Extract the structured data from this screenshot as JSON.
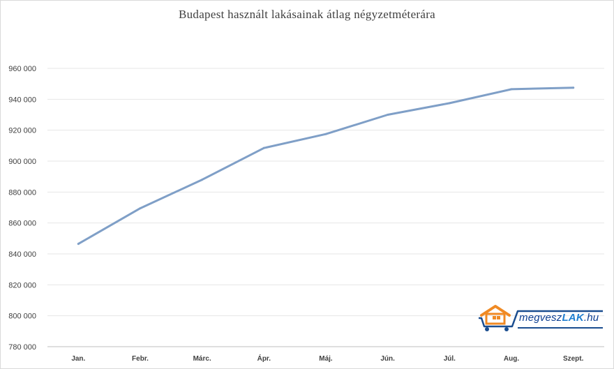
{
  "chart_data": {
    "type": "line",
    "title": "Budapest használt lakásainak átlag négyzetméterára",
    "xlabel": "",
    "ylabel": "",
    "categories": [
      "Jan.",
      "Febr.",
      "Márc.",
      "Ápr.",
      "Máj.",
      "Jún.",
      "Júl.",
      "Aug.",
      "Szept."
    ],
    "series": [
      {
        "values": [
          846500,
          869500,
          888000,
          908500,
          917500,
          930000,
          937500,
          946500,
          947500
        ]
      }
    ],
    "ylim": [
      780000,
      960000
    ],
    "yticks": [
      780000,
      800000,
      820000,
      840000,
      860000,
      880000,
      900000,
      920000,
      940000,
      960000
    ],
    "ytick_labels": [
      "780 000",
      "800 000",
      "820 000",
      "840 000",
      "860 000",
      "880 000",
      "900 000",
      "920 000",
      "940 000",
      "960 000"
    ],
    "grid": "horizontal",
    "line_color": "#7f9fc7",
    "grid_color": "#e6e6e6"
  },
  "logo": {
    "text_main": "megvesz",
    "text_accent": "LAK",
    "text_suffix": ".hu",
    "house_color": "#f08a24",
    "cart_color": "#1a4d8f"
  }
}
